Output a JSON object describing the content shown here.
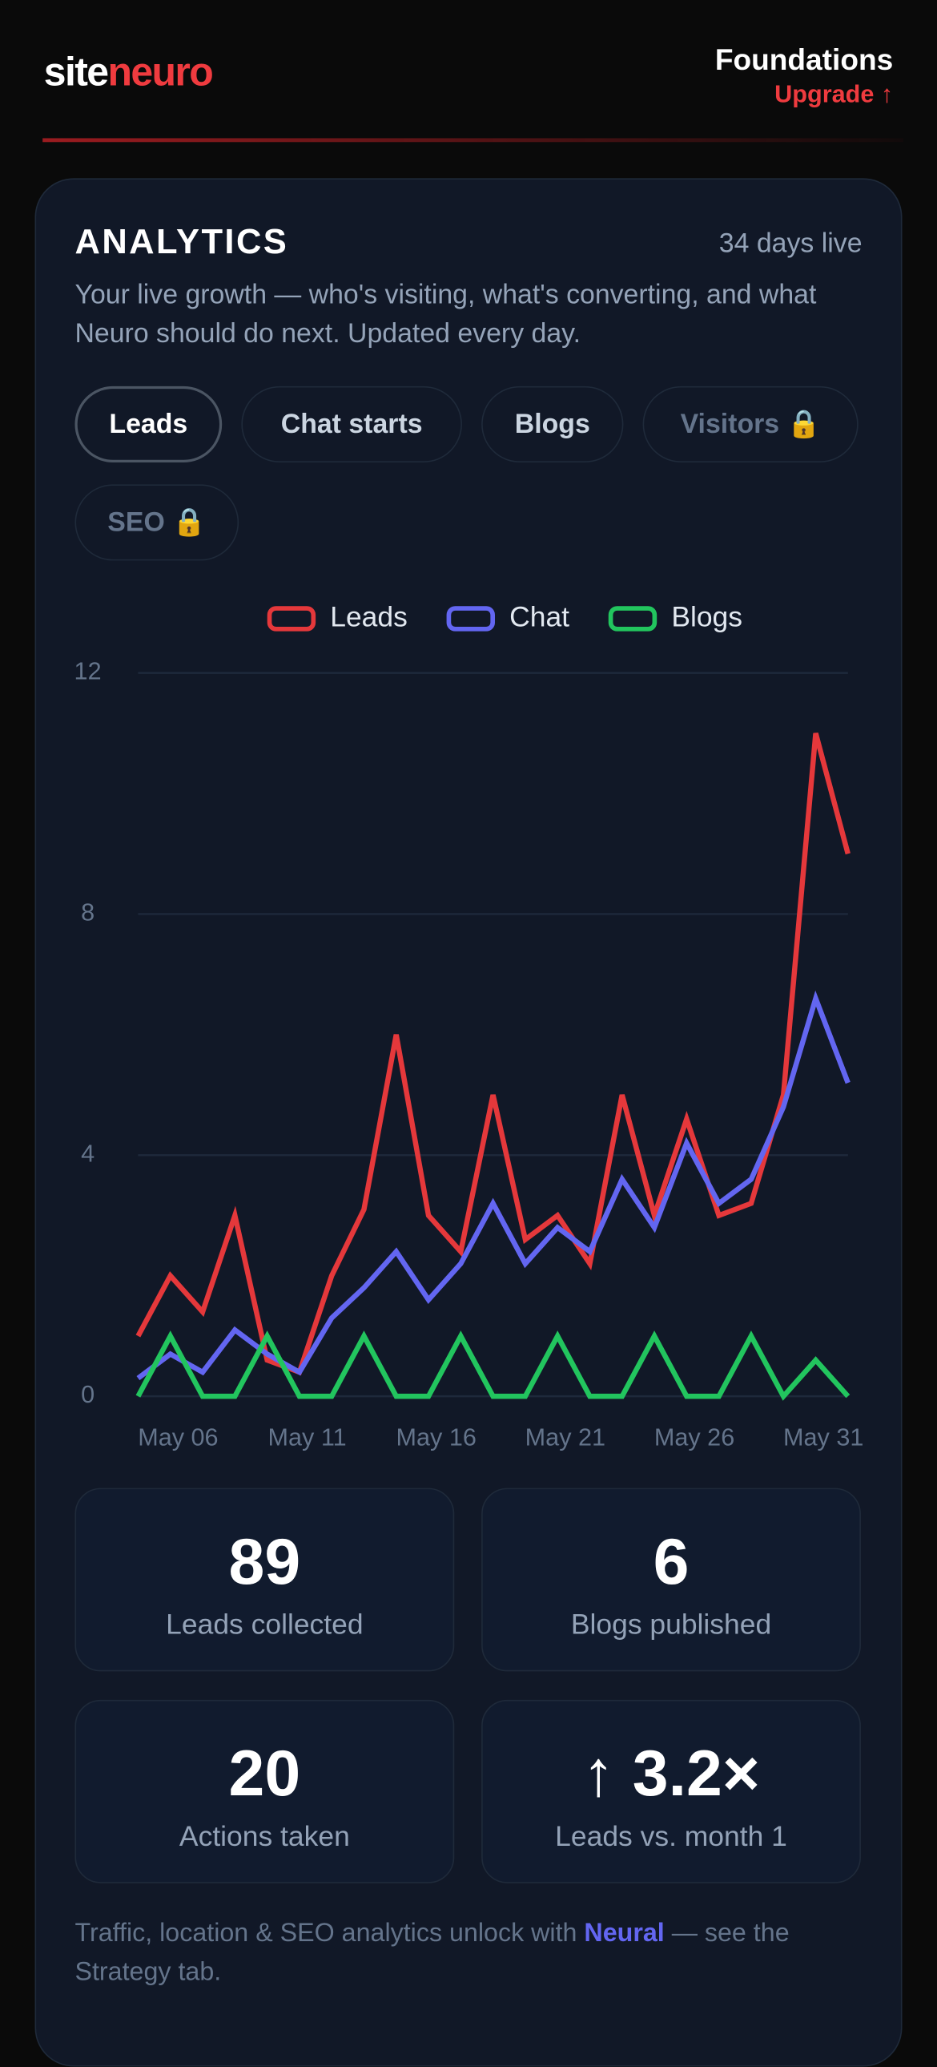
{
  "header": {
    "brand": [
      "site",
      "neuro"
    ],
    "plan": "Foundations",
    "upgrade": "Upgrade ↑"
  },
  "analytics": {
    "title": "ANALYTICS",
    "days_live": "34 days live",
    "description": "Your live growth — who's visiting, what's converting, and what Neuro should do next. Updated every day.",
    "tabs": [
      "Leads",
      "Chat starts",
      "Blogs",
      "Visitors 🔒",
      "SEO 🔒"
    ]
  },
  "chart_data": {
    "type": "line",
    "categories": [
      null,
      "May 06",
      null,
      null,
      null,
      "May 11",
      null,
      null,
      null,
      "May 16",
      null,
      null,
      null,
      "May 21",
      null,
      null,
      null,
      "May 26",
      null,
      null,
      null,
      "May 31",
      null
    ],
    "series": [
      {
        "name": "Leads",
        "color": "#e5383b",
        "values": [
          1,
          2,
          1.4,
          3,
          0.6,
          0.4,
          2,
          3.1,
          6,
          3,
          2.4,
          5,
          2.6,
          3,
          2.2,
          5,
          3,
          4.6,
          3,
          3.2,
          5,
          11,
          9
        ]
      },
      {
        "name": "Chat",
        "color": "#6366f1",
        "values": [
          0.3,
          0.7,
          0.4,
          1.1,
          0.7,
          0.4,
          1.3,
          1.8,
          2.4,
          1.6,
          2.2,
          3.2,
          2.2,
          2.8,
          2.4,
          3.6,
          2.8,
          4.2,
          3.2,
          3.6,
          4.8,
          6.6,
          5.2
        ]
      },
      {
        "name": "Blogs",
        "color": "#22c55e",
        "values": [
          0,
          1,
          0,
          0,
          1,
          0,
          0,
          1,
          0,
          0,
          1,
          0,
          0,
          1,
          0,
          0,
          1,
          0,
          0,
          1,
          0,
          0.6,
          0
        ]
      }
    ],
    "ylim": [
      0,
      12
    ],
    "yticks": [
      0,
      4,
      8,
      12
    ],
    "grid": true,
    "legend": "top"
  },
  "stats": [
    {
      "value": "89",
      "label": "Leads collected"
    },
    {
      "value": "6",
      "label": "Blogs published"
    },
    {
      "value": "20",
      "label": "Actions taken"
    },
    {
      "value": "↑ 3.2×",
      "label": "Leads vs. month 1"
    }
  ],
  "footer": [
    "Traffic, location & SEO analytics unlock with ",
    "Neural",
    " — see the Strategy tab."
  ]
}
